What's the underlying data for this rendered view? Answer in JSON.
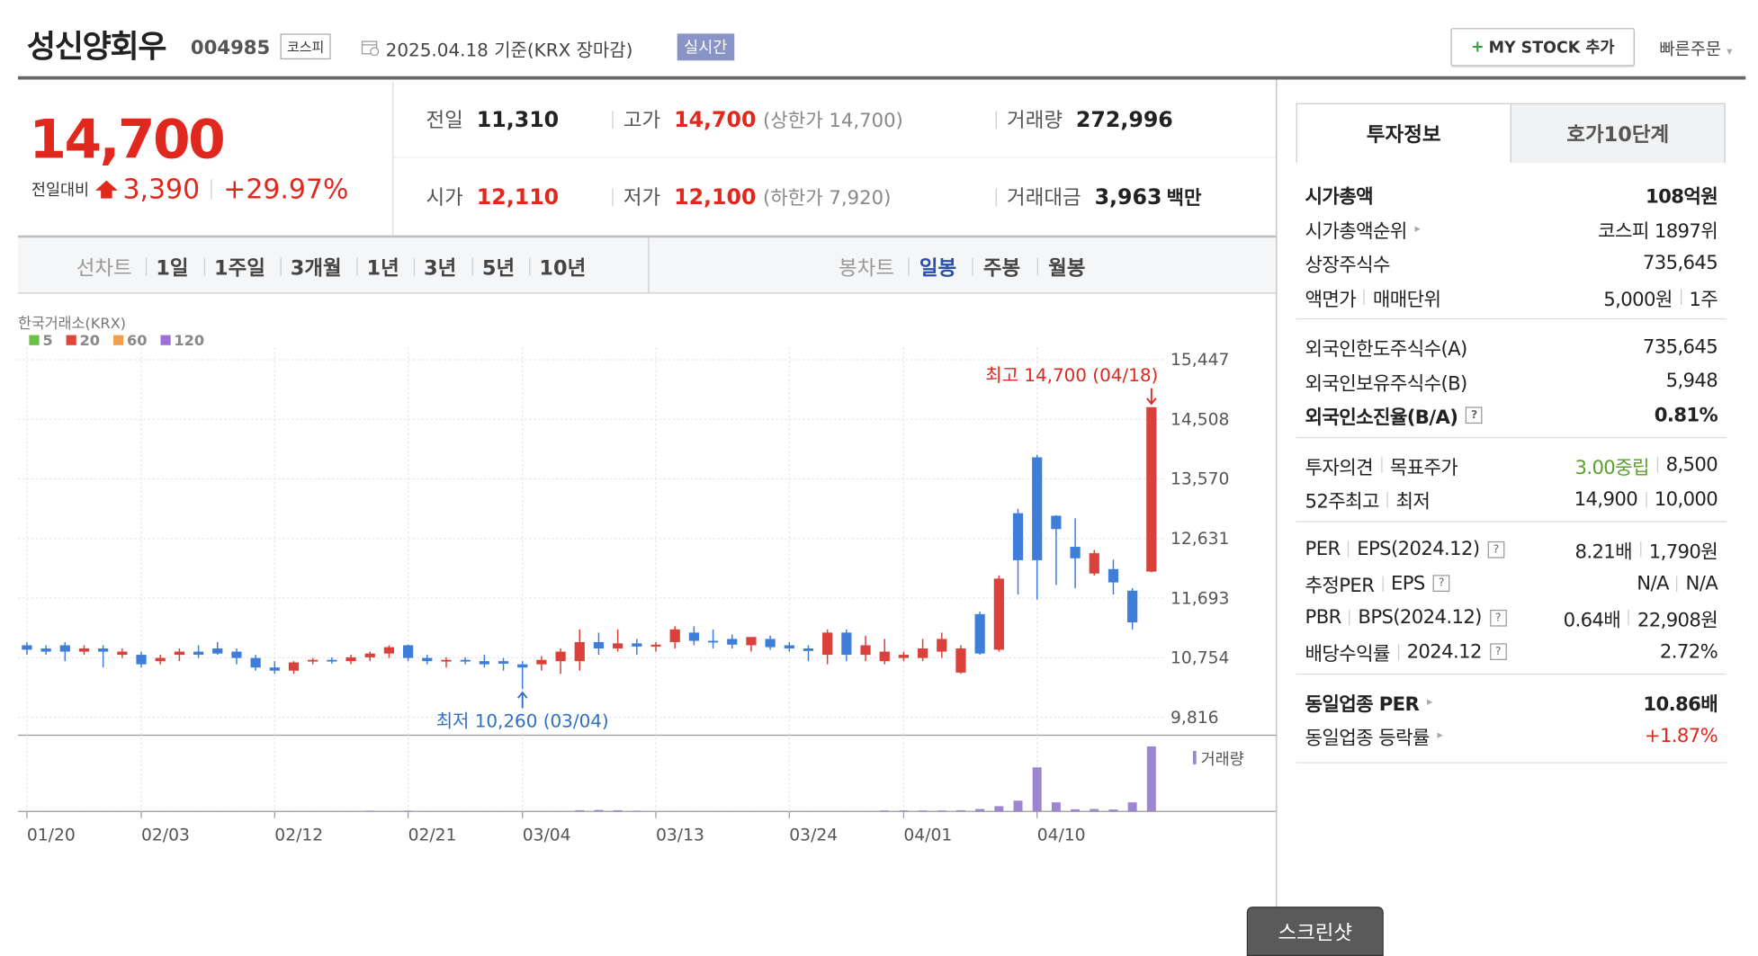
{
  "header": {
    "name": "성신양회우",
    "code": "004985",
    "market": "코스피",
    "date": "2025.04.18",
    "basis": "기준(KRX 장마감)",
    "realtime": "실시간",
    "mystock": "MY STOCK 추가",
    "quick_order": "빠른주문"
  },
  "quote": {
    "price": "14,700",
    "change_label": "전일대비",
    "change": "3,390",
    "change_pct": "+29.97%",
    "stats": [
      {
        "label": "전일",
        "value": "11,310"
      },
      {
        "label": "고가",
        "value": "14,700",
        "note": "(상한가 14,700)",
        "color": "#e0281e"
      },
      {
        "label": "거래량",
        "value": "272,996"
      },
      {
        "label": "시가",
        "value": "12,110",
        "color": "#e0281e"
      },
      {
        "label": "저가",
        "value": "12,100",
        "note": "(하한가 7,920)",
        "color": "#e0281e"
      },
      {
        "label": "거래대금",
        "value": "3,963",
        "unit": "백만"
      }
    ]
  },
  "period_tabs": {
    "line_label": "선차트",
    "line": [
      "1일",
      "1주일",
      "3개월",
      "1년",
      "3년",
      "5년",
      "10년"
    ],
    "candle_label": "봉차트",
    "candle": [
      "일봉",
      "주봉",
      "월봉"
    ]
  },
  "chart_data": {
    "type": "candlestick",
    "source": "한국거래소(KRX)",
    "ma_legend": [
      {
        "name": "5",
        "color": "#6cc04a"
      },
      {
        "name": "20",
        "color": "#e0473a"
      },
      {
        "name": "60",
        "color": "#f0a050"
      },
      {
        "name": "120",
        "color": "#a070d8"
      }
    ],
    "categories": [
      "01/20",
      null,
      null,
      null,
      null,
      null,
      "02/03",
      null,
      null,
      null,
      null,
      null,
      null,
      "02/12",
      null,
      null,
      null,
      null,
      null,
      null,
      "02/21",
      null,
      null,
      null,
      null,
      null,
      "03/04",
      null,
      null,
      null,
      null,
      null,
      null,
      "03/13",
      null,
      null,
      null,
      null,
      null,
      null,
      "03/24",
      null,
      null,
      null,
      null,
      null,
      "04/01",
      null,
      null,
      null,
      null,
      null,
      null,
      "04/10",
      null,
      null,
      null,
      null,
      null,
      null
    ],
    "open": [
      10950,
      10900,
      10950,
      10850,
      10900,
      10800,
      10800,
      10700,
      10800,
      10850,
      10900,
      10850,
      10750,
      10600,
      10550,
      10700,
      10720,
      10700,
      10760,
      10820,
      10950,
      10750,
      10700,
      10720,
      10700,
      10700,
      10650,
      10650,
      10700,
      10700,
      11000,
      10900,
      10980,
      10930,
      11000,
      11150,
      11020,
      11050,
      10950,
      11050,
      10950,
      10900,
      10800,
      11150,
      10800,
      10700,
      10750,
      10750,
      10850,
      10520,
      11440,
      10880,
      13030,
      13910,
      12990,
      12500,
      12080,
      12150,
      11810,
      12110
    ],
    "high": [
      11000,
      10950,
      11000,
      10950,
      10950,
      10900,
      10850,
      10800,
      10900,
      10950,
      11000,
      10900,
      10800,
      10700,
      10700,
      10750,
      10760,
      10800,
      10850,
      10950,
      10960,
      10800,
      10760,
      10760,
      10800,
      10750,
      10700,
      10780,
      10900,
      11200,
      11150,
      11200,
      11050,
      11000,
      11250,
      11250,
      11200,
      11120,
      11050,
      11100,
      11000,
      10950,
      11200,
      11200,
      11100,
      11050,
      10850,
      11050,
      11150,
      10950,
      11480,
      12050,
      13100,
      13950,
      13000,
      12950,
      12450,
      12300,
      11850,
      14700
    ],
    "low": [
      10800,
      10800,
      10700,
      10800,
      10600,
      10750,
      10600,
      10650,
      10700,
      10750,
      10800,
      10650,
      10550,
      10500,
      10500,
      10650,
      10660,
      10650,
      10700,
      10750,
      10700,
      10650,
      10600,
      10650,
      10600,
      10550,
      10260,
      10550,
      10500,
      10550,
      10800,
      10850,
      10800,
      10850,
      10900,
      10950,
      10900,
      10900,
      10850,
      10880,
      10850,
      10700,
      10650,
      10700,
      10700,
      10650,
      10700,
      10700,
      10750,
      10500,
      10800,
      10850,
      11750,
      11670,
      11900,
      11850,
      12050,
      11750,
      11200,
      12100
    ],
    "close": [
      10880,
      10850,
      10850,
      10900,
      10850,
      10850,
      10650,
      10750,
      10850,
      10800,
      10820,
      10750,
      10600,
      10550,
      10680,
      10720,
      10700,
      10760,
      10820,
      10920,
      10750,
      10700,
      10720,
      10700,
      10650,
      10660,
      10600,
      10720,
      10850,
      11000,
      10900,
      10980,
      10930,
      10960,
      11200,
      11020,
      11000,
      10960,
      11080,
      10920,
      10900,
      10860,
      11150,
      10800,
      10950,
      10850,
      10800,
      10900,
      11050,
      10900,
      10820,
      12000,
      12290,
      12290,
      12780,
      12320,
      12400,
      11940,
      11310,
      14700
    ],
    "volume": [
      500,
      500,
      500,
      500,
      500,
      500,
      500,
      500,
      500,
      500,
      500,
      500,
      500,
      500,
      500,
      500,
      500,
      500,
      3000,
      500,
      3000,
      500,
      500,
      500,
      500,
      500,
      500,
      500,
      500,
      5000,
      6000,
      5000,
      3000,
      500,
      500,
      500,
      500,
      500,
      500,
      500,
      500,
      500,
      500,
      500,
      500,
      4000,
      4000,
      4000,
      4000,
      5000,
      10000,
      22000,
      45000,
      185000,
      38000,
      9000,
      10000,
      8000,
      38000,
      272996
    ],
    "ylim": [
      9816,
      15447
    ],
    "yticks": [
      {
        "value": 15447,
        "label": "15,447"
      },
      {
        "value": 14508,
        "label": "14,508"
      },
      {
        "value": 13570,
        "label": "13,570"
      },
      {
        "value": 12631,
        "label": "12,631"
      },
      {
        "value": 11693,
        "label": "11,693"
      },
      {
        "value": 10754,
        "label": "10,754"
      },
      {
        "value": 9816,
        "label": "9,816"
      }
    ],
    "grid": true,
    "up_color": "#d9413a",
    "down_color": "#3f7ed8",
    "volume_color": "#9b86cf",
    "volume_label": "거래량",
    "annotations": [
      {
        "text": "최고 14,700 (04/18)",
        "color": "#e0281e"
      },
      {
        "text": "최저 10,260 (03/04)",
        "color": "#2f6fc4"
      }
    ]
  },
  "sidebar": {
    "tabs": [
      "투자정보",
      "호가10단계"
    ],
    "groups": [
      [
        {
          "label": [
            "시가총액"
          ],
          "value": [
            "108억원"
          ],
          "bold": true
        },
        {
          "label": [
            "시가총액순위"
          ],
          "arrow": true,
          "value": [
            "코스피 1897위"
          ]
        },
        {
          "label": [
            "상장주식수"
          ],
          "value": [
            "735,645"
          ]
        },
        {
          "label": [
            "액면가",
            "매매단위"
          ],
          "value": [
            "5,000원",
            "1주"
          ]
        }
      ],
      [
        {
          "label": [
            "외국인한도주식수(A)"
          ],
          "value": [
            "735,645"
          ]
        },
        {
          "label": [
            "외국인보유주식수(B)"
          ],
          "value": [
            "5,948"
          ]
        },
        {
          "label": [
            "외국인소진율(B/A)"
          ],
          "help": true,
          "value": [
            "0.81%"
          ],
          "bold": true
        }
      ],
      [
        {
          "label": [
            "투자의견",
            "목표주가"
          ],
          "value": [
            "3.00중립",
            "8,500"
          ],
          "first_color": "#5aa02c"
        },
        {
          "label": [
            "52주최고",
            "최저"
          ],
          "value": [
            "14,900",
            "10,000"
          ]
        }
      ],
      [
        {
          "label": [
            "PER",
            "EPS(2024.12)"
          ],
          "help": true,
          "value": [
            "8.21배",
            "1,790원"
          ]
        },
        {
          "label": [
            "추정PER",
            "EPS"
          ],
          "help": true,
          "value": [
            "N/A",
            "N/A"
          ]
        },
        {
          "label": [
            "PBR",
            "BPS(2024.12)"
          ],
          "help": true,
          "value": [
            "0.64배",
            "22,908원"
          ]
        },
        {
          "label": [
            "배당수익률",
            "2024.12"
          ],
          "help": true,
          "value": [
            "2.72%"
          ]
        }
      ],
      [
        {
          "label": [
            "동일업종 PER"
          ],
          "arrow": true,
          "value": [
            "10.86배"
          ],
          "bold": true
        },
        {
          "label": [
            "동일업종 등락률"
          ],
          "arrow": true,
          "value": [
            "+1.87%"
          ],
          "first_color": "#e0281e"
        }
      ]
    ]
  },
  "screenshot_button": "스크린샷"
}
